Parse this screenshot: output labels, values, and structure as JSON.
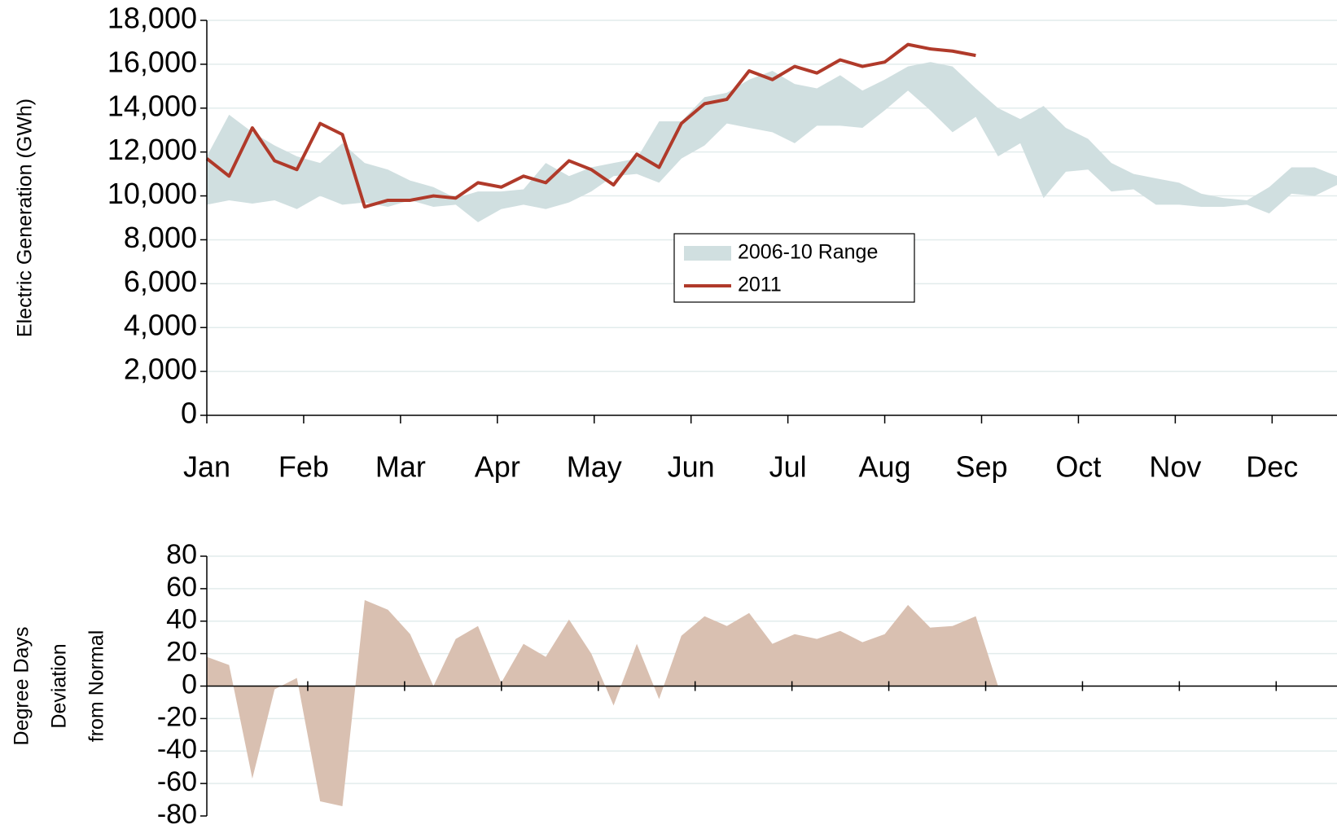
{
  "chart_data": [
    {
      "type": "line",
      "y_label": "Electric Generation (GWh)",
      "x": [
        0,
        0.23,
        0.47,
        0.7,
        0.93,
        1.17,
        1.4,
        1.63,
        1.87,
        2.1,
        2.34,
        2.57,
        2.8,
        3.04,
        3.27,
        3.5,
        3.74,
        3.97,
        4.2,
        4.44,
        4.67,
        4.9,
        5.14,
        5.37,
        5.6,
        5.84,
        6.07,
        6.3,
        6.54,
        6.77,
        7.0,
        7.24,
        7.47,
        7.7,
        7.94,
        8.17,
        8.4,
        8.64,
        8.87,
        9.1,
        9.34,
        9.57,
        9.8,
        10.04,
        10.27,
        10.5,
        10.74,
        10.97,
        11.2,
        11.44,
        11.67
      ],
      "xlim": [
        0,
        11.67
      ],
      "xticks": [
        {
          "value": 0,
          "label": "Jan"
        },
        {
          "value": 1,
          "label": "Feb"
        },
        {
          "value": 2,
          "label": "Mar"
        },
        {
          "value": 3,
          "label": "Apr"
        },
        {
          "value": 4,
          "label": "May"
        },
        {
          "value": 5,
          "label": "Jun"
        },
        {
          "value": 6,
          "label": "Jul"
        },
        {
          "value": 7,
          "label": "Aug"
        },
        {
          "value": 8,
          "label": "Sep"
        },
        {
          "value": 9,
          "label": "Oct"
        },
        {
          "value": 10,
          "label": "Nov"
        },
        {
          "value": 11,
          "label": "Dec"
        }
      ],
      "ylim": [
        0,
        18000
      ],
      "yticks": [
        0,
        {
          "value": 2000,
          "label": "2,000"
        },
        {
          "value": 4000,
          "label": "4,000"
        },
        {
          "value": 6000,
          "label": "6,000"
        },
        {
          "value": 8000,
          "label": "8,000"
        },
        {
          "value": 10000,
          "label": "10,000"
        },
        {
          "value": 12000,
          "label": "12,000"
        },
        {
          "value": 14000,
          "label": "14,000"
        },
        {
          "value": 16000,
          "label": "16,000"
        },
        {
          "value": 18000,
          "label": "18,000"
        }
      ],
      "grid": true,
      "legend": "center",
      "series": [
        {
          "name": "2006-10 Range",
          "color": "#d0dfe0",
          "high": [
            11800,
            13700,
            12900,
            12300,
            11800,
            11500,
            12400,
            11500,
            11200,
            10700,
            10400,
            9900,
            10200,
            10200,
            10300,
            11500,
            10900,
            11300,
            11500,
            11700,
            13400,
            13400,
            14500,
            14700,
            15300,
            15700,
            15100,
            14900,
            15500,
            14800,
            15300,
            15900,
            16100,
            15900,
            14900,
            14000,
            13500,
            14100,
            13100,
            12600,
            11500,
            11000,
            10800,
            10600,
            10100,
            9900,
            9800,
            10400,
            11300,
            11300,
            10900
          ],
          "low": [
            9600,
            9800,
            9650,
            9800,
            9400,
            10000,
            9600,
            9700,
            9500,
            9800,
            9500,
            9600,
            8800,
            9400,
            9600,
            9400,
            9700,
            10200,
            10900,
            11000,
            10600,
            11700,
            12300,
            13300,
            13100,
            12900,
            12400,
            13200,
            13200,
            13100,
            13900,
            14800,
            13900,
            12900,
            13600,
            11800,
            12400,
            9900,
            11100,
            11200,
            10200,
            10300,
            9600,
            9600,
            9500,
            9500,
            9600,
            9200,
            10100,
            10000,
            10500
          ]
        },
        {
          "name": "2011",
          "color": "#b03a2a",
          "values": [
            11700,
            10900,
            13100,
            11600,
            11200,
            13300,
            12800,
            9500,
            9800,
            9800,
            10000,
            9900,
            10600,
            10400,
            10900,
            10600,
            11600,
            11200,
            10500,
            11900,
            11300,
            13300,
            14200,
            14400,
            15700,
            15300,
            15900,
            15600,
            16200,
            15900,
            16100,
            16900,
            16700,
            16600,
            16400,
            null,
            null,
            null,
            null,
            null,
            null,
            null,
            null,
            null,
            null,
            null,
            null,
            null,
            null,
            null,
            null
          ]
        }
      ]
    },
    {
      "type": "area",
      "y_label": [
        "Degree Days",
        "Deviation",
        "from Normal"
      ],
      "x": [
        0,
        0.23,
        0.47,
        0.7,
        0.93,
        1.17,
        1.4,
        1.63,
        1.87,
        2.1,
        2.34,
        2.57,
        2.8,
        3.04,
        3.27,
        3.5,
        3.74,
        3.97,
        4.2,
        4.44,
        4.67,
        4.9,
        5.14,
        5.37,
        5.6,
        5.84,
        6.07,
        6.3,
        6.54,
        6.77,
        7.0,
        7.24,
        7.47,
        7.7,
        7.94,
        8.17,
        8.4,
        8.64,
        8.87,
        9.1,
        9.34,
        9.57,
        9.8,
        10.04,
        10.27,
        10.5,
        10.74,
        10.97,
        11.2,
        11.44,
        11.67
      ],
      "xlim": [
        0,
        11.67
      ],
      "ylim": [
        -80,
        80
      ],
      "yticks": [
        -80,
        -60,
        -40,
        -20,
        0,
        20,
        40,
        60,
        80
      ],
      "grid": true,
      "color": "#d9c0b1",
      "values": [
        18,
        13,
        -57,
        -2,
        5,
        -71,
        -74,
        53,
        47,
        32,
        0,
        29,
        37,
        2,
        26,
        18,
        41,
        20,
        -12,
        26,
        -8,
        31,
        43,
        37,
        45,
        26,
        32,
        29,
        34,
        27,
        32,
        50,
        36,
        37,
        43,
        0,
        null,
        null,
        null,
        null,
        null,
        null,
        null,
        null,
        null,
        null,
        null,
        null,
        null,
        null,
        null
      ]
    }
  ]
}
